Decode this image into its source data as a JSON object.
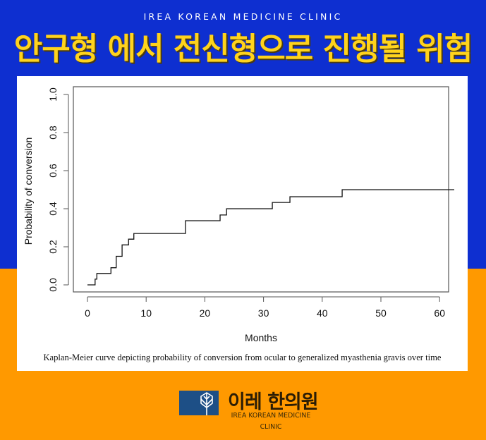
{
  "header": {
    "brand": "IREA KOREAN MEDICINE CLINIC",
    "headline": "안구형 에서 전신형으로 진행될 위험"
  },
  "colors": {
    "background_top": "#0e2fd0",
    "background_bottom": "#ff9900",
    "headline": "#ffd31c",
    "logo_box": "#1d4f86"
  },
  "chart_data": {
    "type": "line",
    "subtype": "kaplan-meier-step",
    "title": "",
    "xlabel": "Months",
    "ylabel": "Probability of conversion",
    "xlim": [
      -2.5,
      62.5
    ],
    "ylim": [
      -0.03,
      1.03
    ],
    "xticks": [
      0,
      10,
      20,
      30,
      40,
      50,
      60
    ],
    "yticks": [
      0.0,
      0.2,
      0.4,
      0.6,
      0.8,
      1.0
    ],
    "xtick_labels": [
      "0",
      "10",
      "20",
      "30",
      "40",
      "50",
      "60"
    ],
    "ytick_labels": [
      "0.0",
      "0.2",
      "0.4",
      "0.6",
      "0.8",
      "1.0"
    ],
    "grid": false,
    "legend": null,
    "series": [
      {
        "name": "Probability of conversion",
        "step_x": [
          0,
          1.3,
          1.6,
          4.0,
          4.9,
          5.9,
          7.0,
          7.9,
          16.7,
          22.6,
          23.7,
          31.5,
          34.5,
          43.4,
          62.5
        ],
        "step_y": [
          0.0,
          0.03,
          0.06,
          0.09,
          0.15,
          0.21,
          0.24,
          0.27,
          0.337,
          0.367,
          0.4,
          0.433,
          0.463,
          0.5,
          0.5
        ]
      }
    ]
  },
  "caption": "Kaplan-Meier curve depicting probability of conversion from ocular to generalized myasthenia gravis over time",
  "footer": {
    "logo_name": "이레 한의원",
    "logo_sub_line1": "IREA KOREAN MEDICINE",
    "logo_sub_line2": "CLINIC"
  }
}
